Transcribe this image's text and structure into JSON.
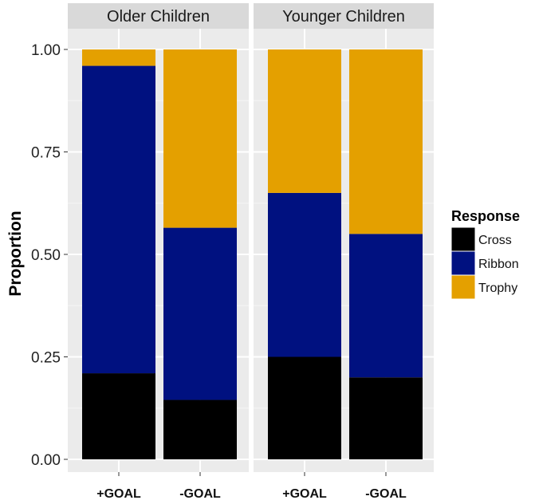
{
  "chart_data": {
    "type": "bar",
    "stacked": true,
    "ylabel": "Proportion",
    "ylim": [
      0,
      1
    ],
    "y_ticks": [
      "0.00",
      "0.25",
      "0.50",
      "0.75",
      "1.00"
    ],
    "y_tick_values": [
      0,
      0.25,
      0.5,
      0.75,
      1
    ],
    "categories": [
      "+GOAL",
      "-GOAL"
    ],
    "grid": true,
    "legend": {
      "title": "Response",
      "placement": "right",
      "entries": [
        "Cross",
        "Ribbon",
        "Trophy"
      ]
    },
    "colors": {
      "Cross": "#000000",
      "Ribbon": "#001180",
      "Trophy": "#E4A000"
    },
    "panels": [
      {
        "title": "Older Children",
        "series": [
          {
            "name": "Cross",
            "values": [
              0.21,
              0.145
            ]
          },
          {
            "name": "Ribbon",
            "values": [
              0.75,
              0.42
            ]
          },
          {
            "name": "Trophy",
            "values": [
              0.04,
              0.435
            ]
          }
        ]
      },
      {
        "title": "Younger Children",
        "series": [
          {
            "name": "Cross",
            "values": [
              0.25,
              0.2
            ]
          },
          {
            "name": "Ribbon",
            "values": [
              0.4,
              0.35
            ]
          },
          {
            "name": "Trophy",
            "values": [
              0.35,
              0.45
            ]
          }
        ]
      }
    ]
  }
}
